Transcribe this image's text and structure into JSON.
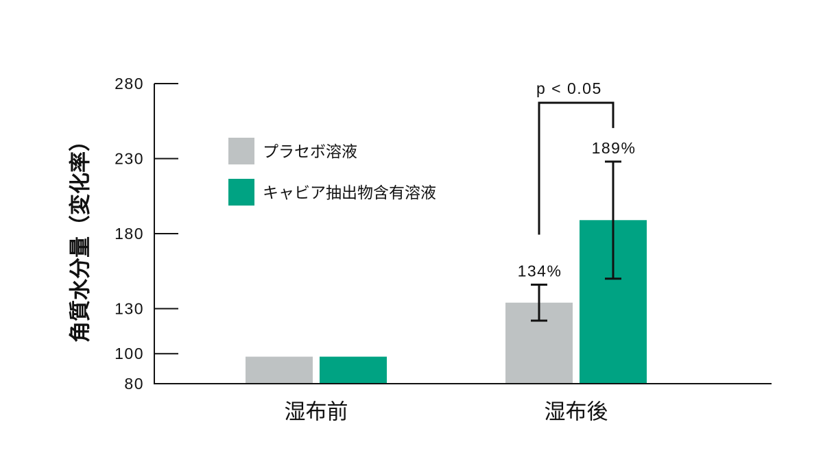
{
  "chart_data": {
    "type": "bar",
    "ylabel": "角質水分量（変化率）",
    "categories": [
      "湿布前",
      "湿布後"
    ],
    "ylim": [
      80,
      280
    ],
    "yticks": [
      80,
      100,
      130,
      180,
      230,
      280
    ],
    "series": [
      {
        "name": "プラセボ溶液",
        "color": "#bec2c3",
        "values": [
          98,
          134
        ],
        "errors": [
          null,
          12
        ],
        "data_labels": [
          null,
          "134%"
        ]
      },
      {
        "name": "キャビア抽出物含有溶液",
        "color": "#00a383",
        "values": [
          98,
          189
        ],
        "errors": [
          null,
          39
        ],
        "data_labels": [
          null,
          "189%"
        ]
      }
    ],
    "annotations": [
      {
        "text": "p < 0.05",
        "category": 1,
        "series": [
          0,
          1
        ]
      }
    ],
    "legend": "upper-left",
    "grid": false
  }
}
